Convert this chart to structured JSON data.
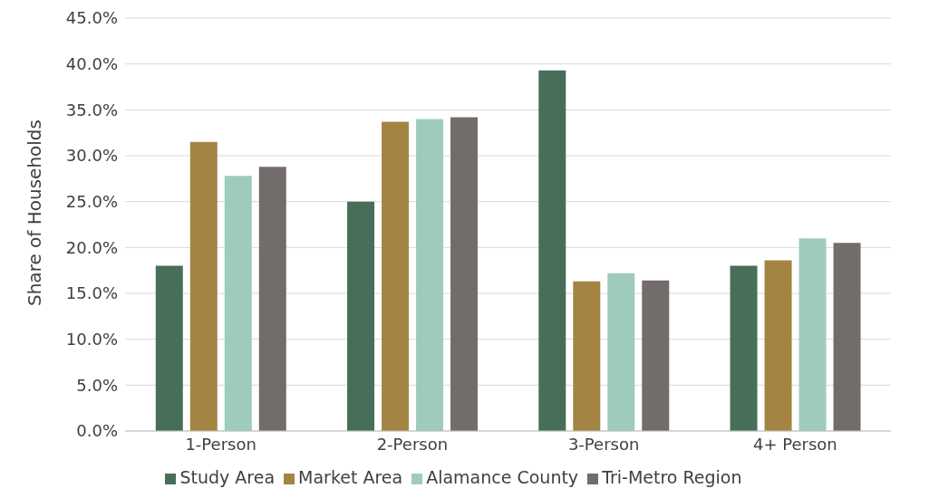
{
  "chart_data": {
    "type": "bar",
    "ylabel": "Share of Households",
    "categories": [
      "1-Person",
      "2-Person",
      "3-Person",
      "4+ Person"
    ],
    "series": [
      {
        "name": "Study Area",
        "color": "#476e58",
        "values": [
          18.0,
          25.0,
          39.3,
          18.0
        ]
      },
      {
        "name": "Market Area",
        "color": "#a38443",
        "values": [
          31.5,
          33.7,
          16.3,
          18.6
        ]
      },
      {
        "name": "Alamance County",
        "color": "#9ecbbc",
        "values": [
          27.8,
          34.0,
          17.2,
          21.0
        ]
      },
      {
        "name": "Tri-Metro Region",
        "color": "#726d6b",
        "values": [
          28.8,
          34.2,
          16.4,
          20.5
        ]
      }
    ],
    "ylim": [
      0,
      45
    ],
    "yticks": [
      {
        "value": 0,
        "label": "0.0%"
      },
      {
        "value": 5,
        "label": "5.0%"
      },
      {
        "value": 10,
        "label": "10.0%"
      },
      {
        "value": 15,
        "label": "15.0%"
      },
      {
        "value": 20,
        "label": "20.0%"
      },
      {
        "value": 25,
        "label": "25.0%"
      },
      {
        "value": 30,
        "label": "30.0%"
      },
      {
        "value": 35,
        "label": "35.0%"
      },
      {
        "value": 40,
        "label": "40.0%"
      },
      {
        "value": 45,
        "label": "45.0%"
      }
    ],
    "grid": "y",
    "legend": "bottom"
  }
}
